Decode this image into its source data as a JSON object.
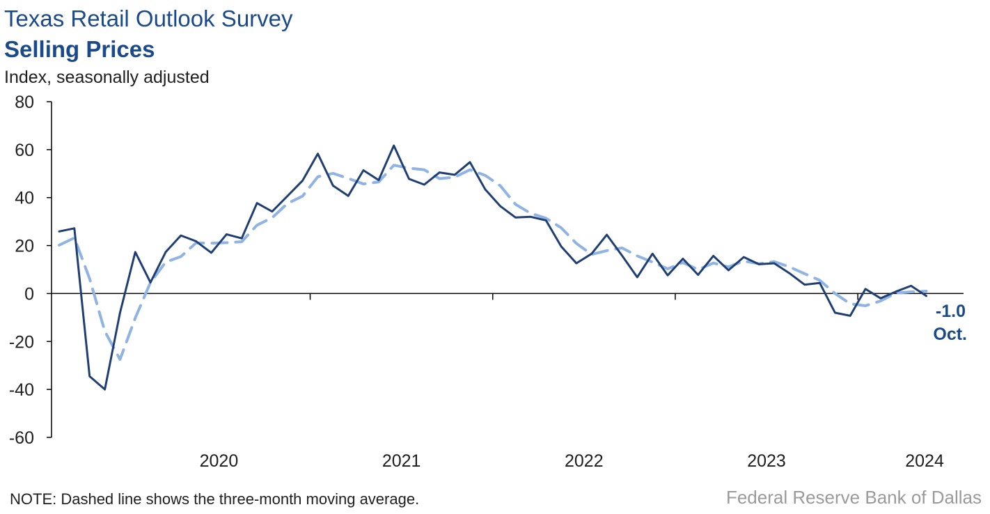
{
  "title": "Texas Retail Outlook Survey",
  "subtitle": "Selling Prices",
  "ylabel": "Index, seasonally adjusted",
  "note": "NOTE: Dashed line shows the three-month moving average.",
  "source": "Federal Reserve Bank of Dallas",
  "colors": {
    "primary": "#1f3f74",
    "moving_avg": "#8fb4e3",
    "text": "#1e1e1e",
    "annotation": "#1a4a8a"
  },
  "chart_data": {
    "type": "line",
    "title": "Selling Prices",
    "ylabel": "Index, seasonally adjusted",
    "ylim": [
      -60,
      80
    ],
    "yticks": [
      -60,
      -40,
      -20,
      0,
      20,
      40,
      60,
      80
    ],
    "xticks": [
      "2020",
      "2021",
      "2022",
      "2023",
      "2024"
    ],
    "x_start": "2019-08",
    "x_end": "2024-10",
    "series": [
      {
        "style": "solid",
        "color": "#1f3f74",
        "values": [
          25.9,
          27.2,
          -34.5,
          -40.0,
          -8.0,
          17.3,
          4.6,
          17.3,
          24.2,
          21.8,
          17.0,
          24.7,
          23.0,
          37.7,
          34.2,
          40.6,
          47.1,
          58.3,
          45.0,
          40.7,
          51.4,
          47.3,
          61.7,
          47.8,
          45.4,
          50.5,
          49.5,
          54.8,
          43.5,
          36.4,
          31.7,
          32.0,
          30.5,
          19.6,
          12.6,
          16.6,
          24.5,
          15.8,
          6.8,
          16.6,
          7.6,
          14.5,
          7.8,
          15.7,
          9.7,
          15.2,
          12.2,
          12.6,
          8.5,
          3.7,
          4.4,
          -8.0,
          -9.3,
          1.9,
          -2.0,
          0.8,
          3.2,
          -1.0
        ]
      },
      {
        "style": "dashed",
        "color": "#8fb4e3",
        "values": [
          20.2,
          23.2,
          6.2,
          -15.8,
          -27.5,
          -10.2,
          4.6,
          13.1,
          15.4,
          21.1,
          21.0,
          21.2,
          21.6,
          28.5,
          31.6,
          37.5,
          40.6,
          48.7,
          50.1,
          48.0,
          45.7,
          46.5,
          53.5,
          52.3,
          51.6,
          47.9,
          48.5,
          51.6,
          49.3,
          44.9,
          37.2,
          33.4,
          31.4,
          27.4,
          20.9,
          16.3,
          17.9,
          19.0,
          15.7,
          13.1,
          10.3,
          12.9,
          10.0,
          12.7,
          11.1,
          13.5,
          12.4,
          13.3,
          11.1,
          8.3,
          5.5,
          -0.0,
          -4.3,
          -5.1,
          -3.1,
          0.2,
          0.7,
          1.0
        ]
      }
    ],
    "annotation": {
      "value_label": "-1.0",
      "month_label": "Oct."
    }
  }
}
